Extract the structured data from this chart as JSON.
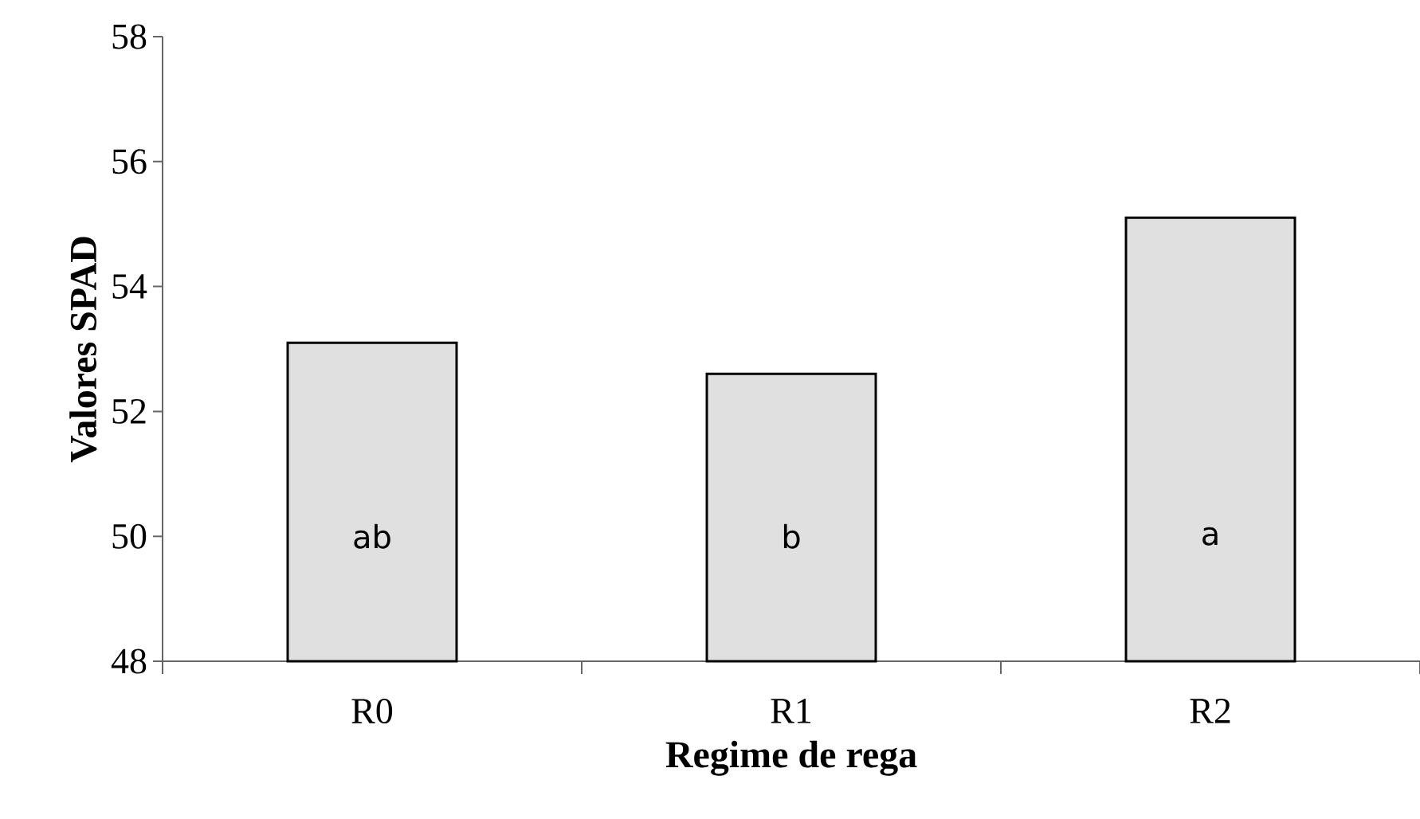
{
  "chart_data": {
    "type": "bar",
    "xlabel": "Regime de rega",
    "ylabel": "Valores SPAD",
    "categories": [
      "R0",
      "R1",
      "R2"
    ],
    "values": [
      53.1,
      52.6,
      55.1
    ],
    "color": "#000000",
    "ylim": [
      48,
      58
    ],
    "yticks": [
      48,
      50,
      52,
      54,
      56,
      58
    ],
    "annotations": [
      "ab",
      "b",
      "a"
    ]
  }
}
